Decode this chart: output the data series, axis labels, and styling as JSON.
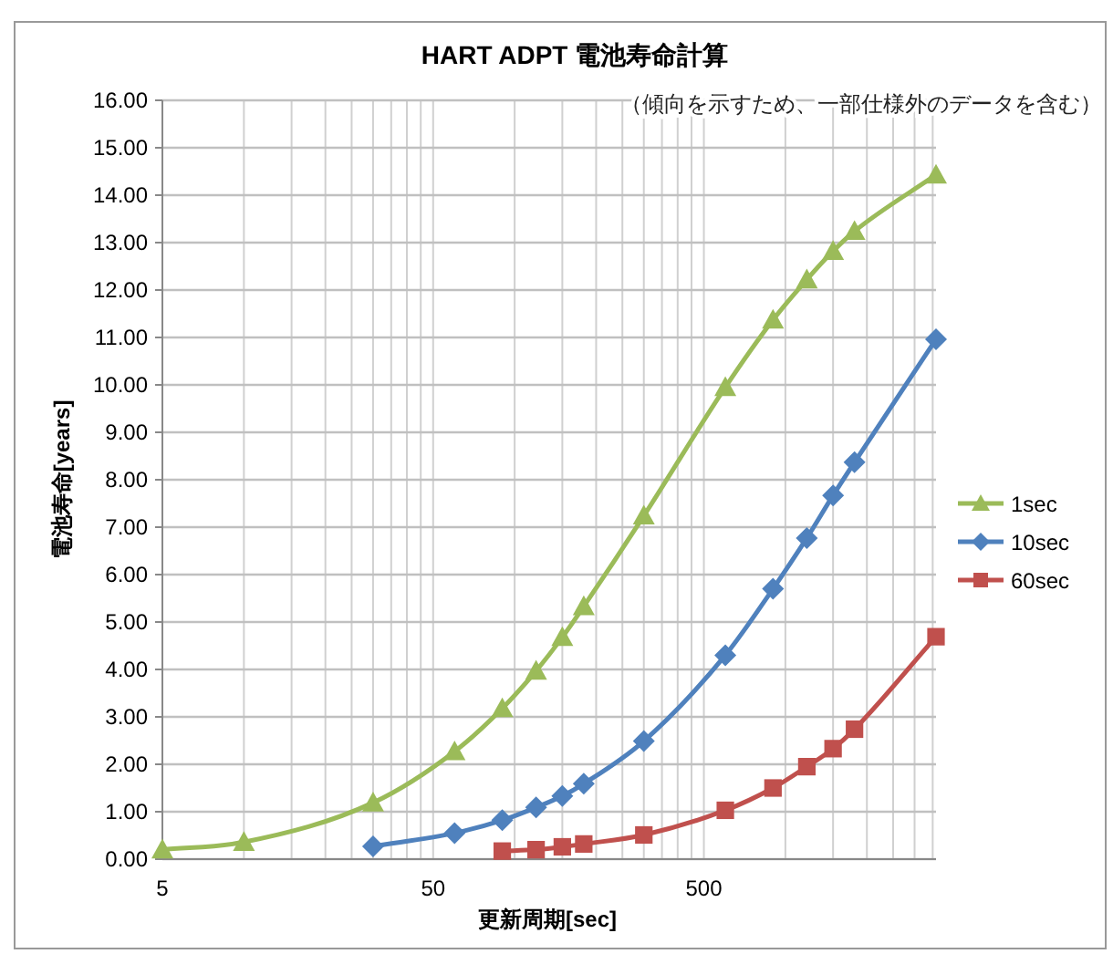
{
  "chart_data": {
    "type": "line",
    "title": "HART ADPT 電池寿命計算",
    "subtitle": "（傾向を示すため、一部仕様外のデータを含む）",
    "xlabel": "更新周期[sec]",
    "ylabel": "電池寿命[years]",
    "log": "x",
    "grid": true,
    "legend": "right",
    "line_style": "solid",
    "xlim": [
      5,
      3600
    ],
    "xticks": [
      5,
      {
        "value": 10,
        "label": null
      },
      {
        "value": 15,
        "label": null
      },
      {
        "value": 20,
        "label": null
      },
      {
        "value": 25,
        "label": null
      },
      {
        "value": 30,
        "label": null
      },
      {
        "value": 35,
        "label": null
      },
      {
        "value": 40,
        "label": null
      },
      {
        "value": 45,
        "label": null
      },
      50,
      {
        "value": 100,
        "label": null
      },
      {
        "value": 150,
        "label": null
      },
      {
        "value": 200,
        "label": null
      },
      {
        "value": 250,
        "label": null
      },
      {
        "value": 300,
        "label": null
      },
      {
        "value": 350,
        "label": null
      },
      {
        "value": 400,
        "label": null
      },
      {
        "value": 450,
        "label": null
      },
      500,
      {
        "value": 1000,
        "label": null
      },
      {
        "value": 1500,
        "label": null
      },
      {
        "value": 2000,
        "label": null
      },
      {
        "value": 2500,
        "label": null
      },
      {
        "value": 3000,
        "label": null
      },
      {
        "value": 3500,
        "label": null
      }
    ],
    "ylim": [
      0,
      16
    ],
    "yticks": [
      {
        "value": 0,
        "label": "0.00"
      },
      {
        "value": 1,
        "label": "1.00"
      },
      {
        "value": 2,
        "label": "2.00"
      },
      {
        "value": 3,
        "label": "3.00"
      },
      {
        "value": 4,
        "label": "4.00"
      },
      {
        "value": 5,
        "label": "5.00"
      },
      {
        "value": 6,
        "label": "6.00"
      },
      {
        "value": 7,
        "label": "7.00"
      },
      {
        "value": 8,
        "label": "8.00"
      },
      {
        "value": 9,
        "label": "9.00"
      },
      {
        "value": 10,
        "label": "10.00"
      },
      {
        "value": 11,
        "label": "11.00"
      },
      {
        "value": 12,
        "label": "12.00"
      },
      {
        "value": 13,
        "label": "13.00"
      },
      {
        "value": 14,
        "label": "14.00"
      },
      {
        "value": 15,
        "label": "15.00"
      },
      {
        "value": 16,
        "label": "16.00"
      }
    ],
    "series": [
      {
        "name": "1sec",
        "color": "#9bbb59",
        "marker": "triangle",
        "x": [
          5,
          10,
          30,
          60,
          90,
          120,
          150,
          180,
          300,
          600,
          900,
          1200,
          1500,
          1800,
          3600
        ],
        "values": [
          0.2,
          0.36,
          1.19,
          2.27,
          3.18,
          3.97,
          4.68,
          5.33,
          7.24,
          9.95,
          11.37,
          12.22,
          12.82,
          13.24,
          14.43
        ]
      },
      {
        "name": "10sec",
        "color": "#4f81bd",
        "marker": "diamond",
        "x": [
          30,
          60,
          90,
          120,
          150,
          180,
          300,
          600,
          900,
          1200,
          1500,
          1800,
          3600
        ],
        "values": [
          0.27,
          0.55,
          0.82,
          1.09,
          1.33,
          1.59,
          2.49,
          4.3,
          5.7,
          6.77,
          7.67,
          8.37,
          10.96
        ]
      },
      {
        "name": "60sec",
        "color": "#c0504d",
        "marker": "square",
        "x": [
          90,
          120,
          150,
          180,
          300,
          600,
          900,
          1200,
          1500,
          1800,
          3600
        ],
        "values": [
          0.17,
          0.2,
          0.26,
          0.32,
          0.51,
          1.03,
          1.5,
          1.95,
          2.33,
          2.74,
          4.69
        ]
      }
    ]
  }
}
